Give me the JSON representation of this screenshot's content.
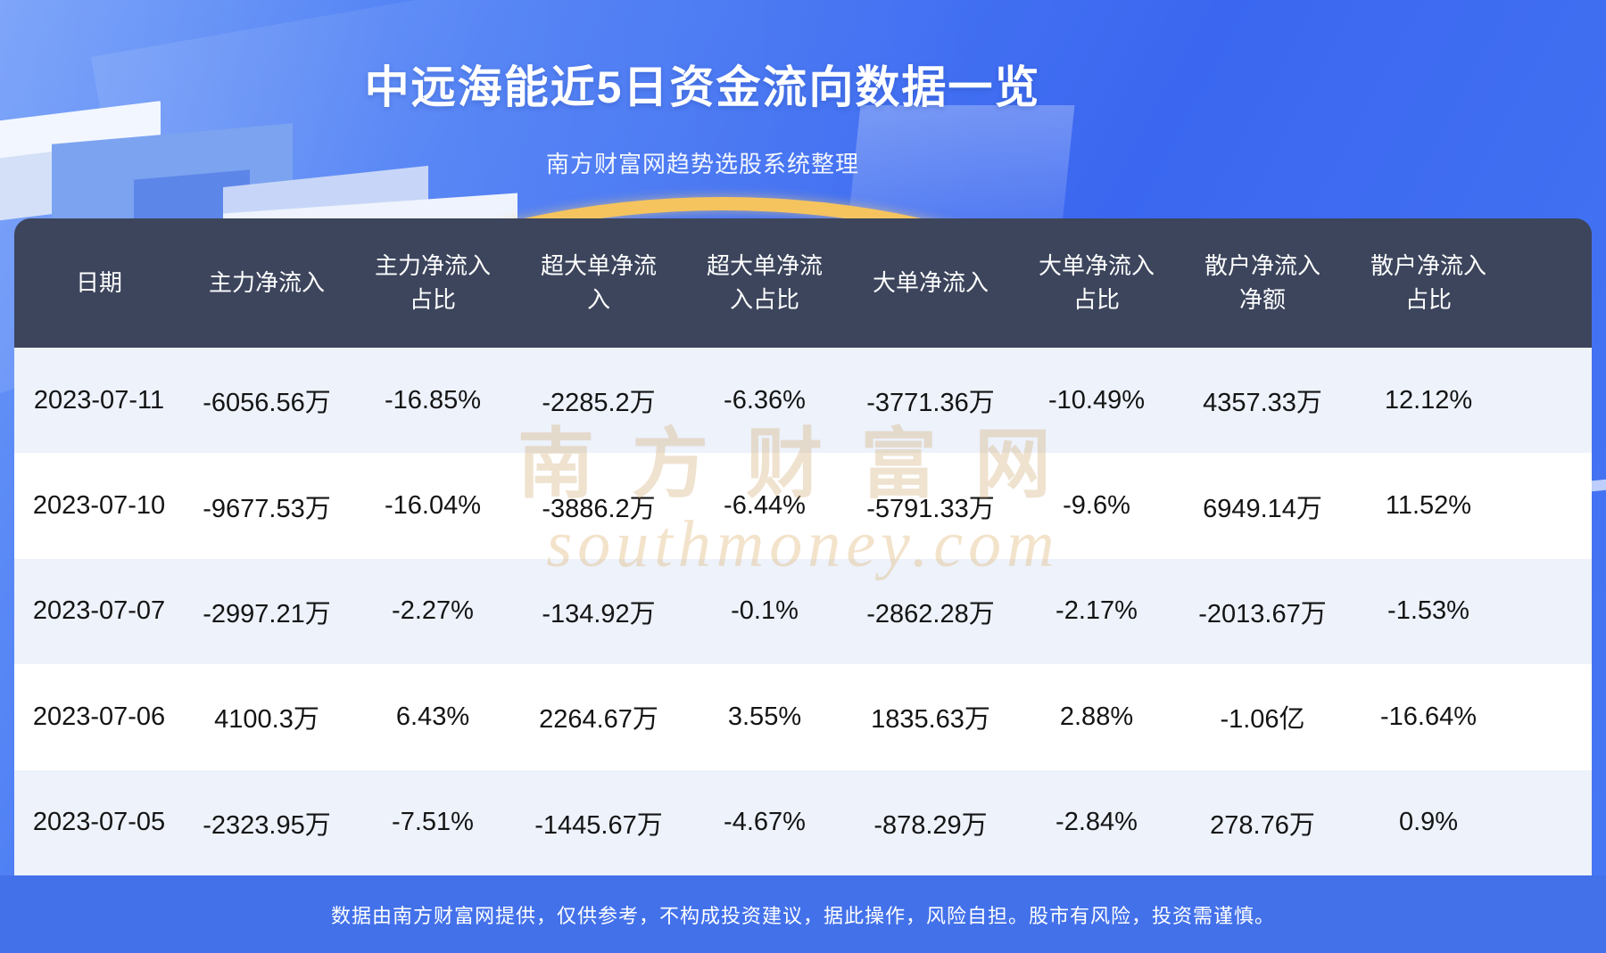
{
  "header": {
    "title": "中远海能近5日资金流向数据一览",
    "subtitle": "南方财富网趋势选股系统整理"
  },
  "watermark": {
    "cn": "南方财富网",
    "en": "southmoney.com"
  },
  "footer": {
    "disclaimer": "数据由南方财富网提供，仅供参考，不构成投资建议，据此操作，风险自担。股市有风险，投资需谨慎。"
  },
  "colors": {
    "header_navy": "#3c455c",
    "row_alt_blue": "#edf2fb",
    "row_white": "#ffffff",
    "footer_blue": "#4371ea",
    "gold_arc": "#f5c45f",
    "background_blue": "#4677f3"
  },
  "chart_data": {
    "type": "table",
    "title": "中远海能近5日资金流向数据一览",
    "columns": [
      "日期",
      "主力净流入",
      "主力净流入占比",
      "超大单净流入",
      "超大单净流入占比",
      "大单净流入",
      "大单净流入占比",
      "散户净流入净额",
      "散户净流入占比"
    ],
    "rows": [
      [
        "2023-07-11",
        "-6056.56万",
        "-16.85%",
        "-2285.2万",
        "-6.36%",
        "-3771.36万",
        "-10.49%",
        "4357.33万",
        "12.12%"
      ],
      [
        "2023-07-10",
        "-9677.53万",
        "-16.04%",
        "-3886.2万",
        "-6.44%",
        "-5791.33万",
        "-9.6%",
        "6949.14万",
        "11.52%"
      ],
      [
        "2023-07-07",
        "-2997.21万",
        "-2.27%",
        "-134.92万",
        "-0.1%",
        "-2862.28万",
        "-2.17%",
        "-2013.67万",
        "-1.53%"
      ],
      [
        "2023-07-06",
        "4100.3万",
        "6.43%",
        "2264.67万",
        "3.55%",
        "1835.63万",
        "2.88%",
        "-1.06亿",
        "-16.64%"
      ],
      [
        "2023-07-05",
        "-2323.95万",
        "-7.51%",
        "-1445.67万",
        "-4.67%",
        "-878.29万",
        "-2.84%",
        "278.76万",
        "0.9%"
      ]
    ]
  }
}
